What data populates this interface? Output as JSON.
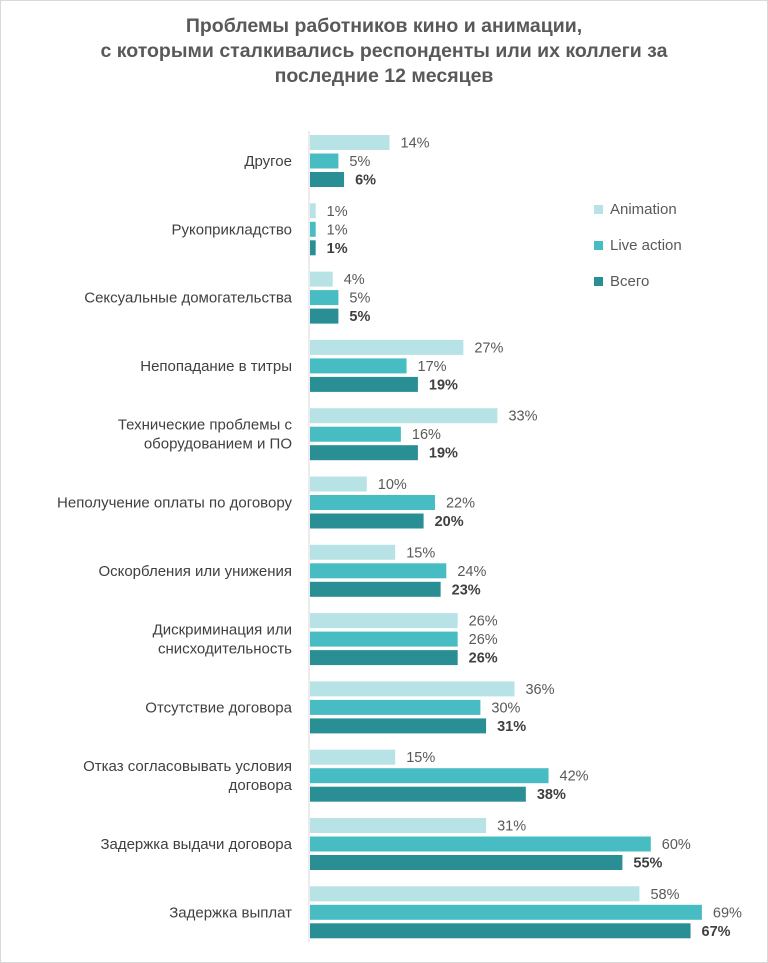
{
  "title_lines": [
    "Проблемы работников кино и анимации,",
    "с которыми сталкивались респонденты или их коллеги за",
    "последние 12 месяцев"
  ],
  "chart_data": {
    "type": "bar",
    "orientation": "horizontal",
    "title": "Проблемы работников кино и анимации, с которыми сталкивались респонденты или их коллеги за последние 12 месяцев",
    "categories": [
      [
        "Другое"
      ],
      [
        "Рукоприкладство"
      ],
      [
        "Сексуальные домогательства"
      ],
      [
        "Непопадание в титры"
      ],
      [
        "Технические проблемы с",
        "оборудованием и ПО"
      ],
      [
        "Неполучение оплаты по договору"
      ],
      [
        "Оскорбления или унижения"
      ],
      [
        "Дискриминация или",
        "снисходительность"
      ],
      [
        "Отсутствие договора"
      ],
      [
        "Отказ согласовывать условия",
        "договора"
      ],
      [
        "Задержка выдачи договора"
      ],
      [
        "Задержка выплат"
      ]
    ],
    "series": [
      {
        "name": "Animation",
        "color": "#b7e3e6",
        "bold": false,
        "values": [
          14,
          1,
          4,
          27,
          33,
          10,
          15,
          26,
          36,
          15,
          31,
          58
        ]
      },
      {
        "name": "Live action",
        "color": "#47bcc3",
        "bold": false,
        "values": [
          5,
          1,
          5,
          17,
          16,
          22,
          24,
          26,
          30,
          42,
          60,
          69
        ]
      },
      {
        "name": "Всего",
        "color": "#2a8f95",
        "bold": true,
        "values": [
          6,
          1,
          5,
          19,
          19,
          20,
          23,
          26,
          31,
          38,
          55,
          67
        ]
      }
    ],
    "value_suffix": "%",
    "xlim": [
      0,
      100
    ],
    "axis_color": "#d9d9d9",
    "legend_position": "right"
  }
}
